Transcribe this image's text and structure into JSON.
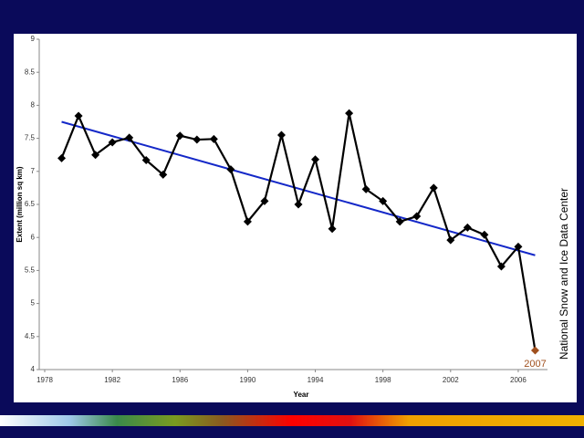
{
  "chart_data": {
    "type": "line",
    "x_label": "Year",
    "y_label": "Extent (million sq km)",
    "credit": "National Snow and Ice Data Center",
    "x": [
      1979,
      1980,
      1981,
      1982,
      1983,
      1984,
      1985,
      1986,
      1987,
      1988,
      1989,
      1990,
      1991,
      1992,
      1993,
      1994,
      1995,
      1996,
      1997,
      1998,
      1999,
      2000,
      2001,
      2002,
      2003,
      2004,
      2005,
      2006,
      2007
    ],
    "series": [
      {
        "color": "#000000",
        "values": [
          7.2,
          7.84,
          7.25,
          7.44,
          7.51,
          7.17,
          6.95,
          7.54,
          7.48,
          7.49,
          7.03,
          6.24,
          6.55,
          7.55,
          6.5,
          7.18,
          6.13,
          7.88,
          6.73,
          6.55,
          6.24,
          6.32,
          6.75,
          5.96,
          6.15,
          6.04,
          5.56,
          5.86,
          4.29
        ]
      }
    ],
    "trend": {
      "color": "#1428c8",
      "x": [
        1979,
        2007
      ],
      "values": [
        7.75,
        5.73
      ]
    },
    "highlight": {
      "label": "2007",
      "color": "#a0501e"
    },
    "xlim": [
      1978,
      2008
    ],
    "ylim": [
      4,
      9
    ],
    "xticks": [
      1978,
      1982,
      1986,
      1990,
      1994,
      1998,
      2002,
      2006
    ],
    "yticks": [
      4,
      4.5,
      5,
      5.5,
      6,
      6.5,
      7,
      7.5,
      8,
      8.5,
      9
    ]
  }
}
